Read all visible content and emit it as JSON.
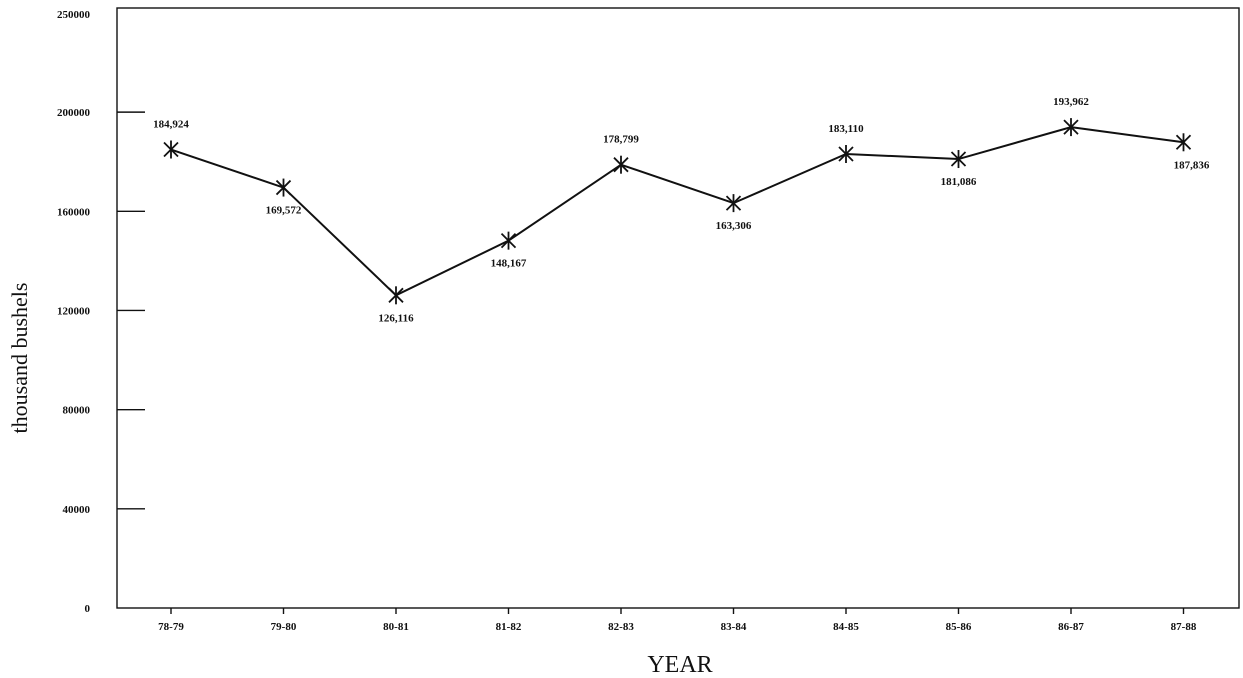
{
  "chart_data": {
    "type": "line",
    "title": "",
    "xlabel": "YEAR",
    "ylabel": "thousand bushels",
    "categories": [
      "78-79",
      "79-80",
      "80-81",
      "81-82",
      "82-83",
      "83-84",
      "84-85",
      "85-86",
      "86-87",
      "87-88"
    ],
    "y_ticks": [
      "0",
      "40000",
      "80000",
      "120000",
      "160000",
      "200000",
      "250000"
    ],
    "ylim": [
      0,
      242000
    ],
    "series": [
      {
        "values": [
          184924,
          169572,
          126116,
          148167,
          178799,
          163306,
          183110,
          181086,
          193962,
          187836
        ],
        "labels": [
          "184,924",
          "169,572",
          "126,116",
          "148,167",
          "178,799",
          "163,306",
          "183,110",
          "181,086",
          "193,962",
          "187,836"
        ]
      }
    ],
    "marker": "asterisk",
    "grid": false,
    "legend": "none",
    "line_color": "#111111"
  }
}
